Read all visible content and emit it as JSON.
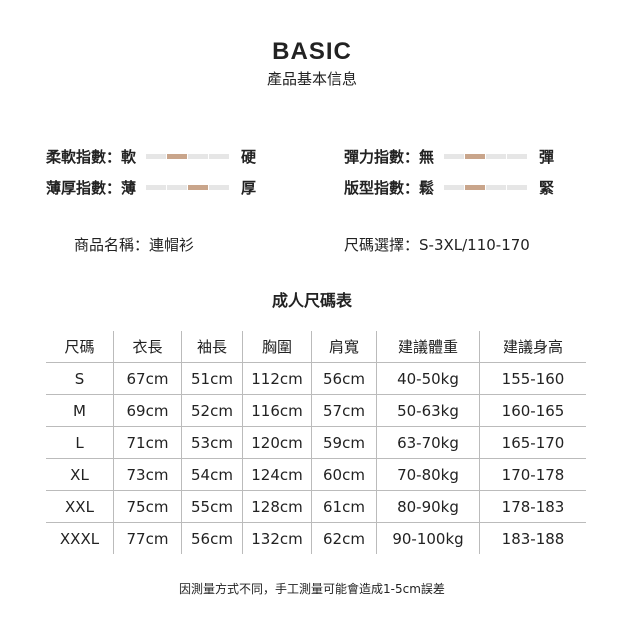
{
  "header": {
    "title": "BASIC",
    "subtitle": "產品基本信息"
  },
  "indices": [
    {
      "label": "柔軟指數：",
      "left": "軟",
      "right": "硬",
      "level_segment": 2,
      "segments": 4
    },
    {
      "label": "彈力指數：",
      "left": "無",
      "right": "彈",
      "level_segment": 2,
      "segments": 4
    },
    {
      "label": "薄厚指數：",
      "left": "薄",
      "right": "厚",
      "level_segment": 3,
      "segments": 4
    },
    {
      "label": "版型指數：",
      "left": "鬆",
      "right": "緊",
      "level_segment": 2,
      "segments": 4
    }
  ],
  "colors": {
    "active": "#c9a58b",
    "inactive": "#e6e6e6"
  },
  "product": {
    "name_label": "商品名稱：",
    "name": "連帽衫",
    "size_label": "尺碼選擇：",
    "sizes": "S-3XL/110-170"
  },
  "size_table": {
    "title": "成人尺碼表",
    "headers": [
      "尺碼",
      "衣長",
      "袖長",
      "胸圍",
      "肩寬",
      "建議體重",
      "建議身高"
    ],
    "rows": [
      [
        "S",
        "67cm",
        "51cm",
        "112cm",
        "56cm",
        "40-50kg",
        "155-160"
      ],
      [
        "M",
        "69cm",
        "52cm",
        "116cm",
        "57cm",
        "50-63kg",
        "160-165"
      ],
      [
        "L",
        "71cm",
        "53cm",
        "120cm",
        "59cm",
        "63-70kg",
        "165-170"
      ],
      [
        "XL",
        "73cm",
        "54cm",
        "124cm",
        "60cm",
        "70-80kg",
        "170-178"
      ],
      [
        "XXL",
        "75cm",
        "55cm",
        "128cm",
        "61cm",
        "80-90kg",
        "178-183"
      ],
      [
        "XXXL",
        "77cm",
        "56cm",
        "132cm",
        "62cm",
        "90-100kg",
        "183-188"
      ]
    ]
  },
  "note": "因測量方式不同，手工測量可能會造成1-5cm誤差"
}
